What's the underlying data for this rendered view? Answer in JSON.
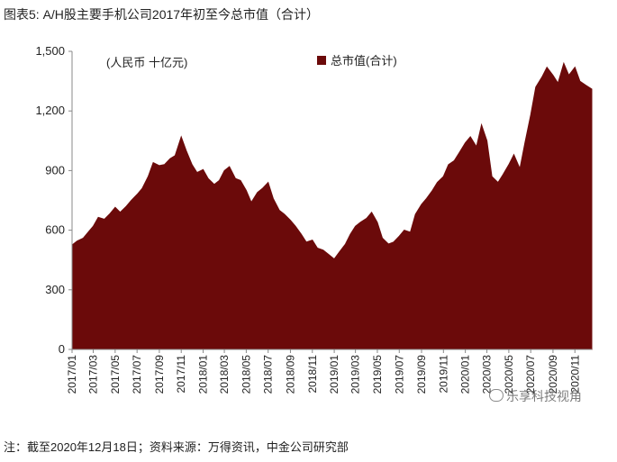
{
  "header": {
    "title": "图表5: A/H股主要手机公司2017年初至今总市值（合计）"
  },
  "footer": {
    "note": "注：截至2020年12月18日；资料来源：万得资讯，中金公司研究部"
  },
  "watermark": {
    "text": "乐享科技视角"
  },
  "chart_data": {
    "type": "area",
    "unit_label": "(人民币 十亿元)",
    "legend": [
      {
        "name": "总市值(合计)",
        "color": "#6b0a0a"
      }
    ],
    "legend_position": "top-right",
    "ylim": [
      0,
      1500
    ],
    "y_ticks": [
      "0",
      "300",
      "600",
      "900",
      "1,200",
      "1,500"
    ],
    "y_tick_values": [
      0,
      300,
      600,
      900,
      1200,
      1500
    ],
    "x_tick_labels": [
      "2017/01",
      "2017/03",
      "2017/05",
      "2017/07",
      "2017/09",
      "2017/11",
      "2018/01",
      "2018/03",
      "2018/05",
      "2018/07",
      "2018/09",
      "2018/11",
      "2019/01",
      "2019/03",
      "2019/05",
      "2019/07",
      "2019/09",
      "2019/11",
      "2020/01",
      "2020/03",
      "2020/05",
      "2020/07",
      "2020/09",
      "2020/11"
    ],
    "grid": false,
    "series": [
      {
        "name": "总市值(合计)",
        "color": "#6b0a0a",
        "points": [
          [
            "2017/01/01",
            525
          ],
          [
            "2017/01/15",
            545
          ],
          [
            "2017/02/01",
            560
          ],
          [
            "2017/02/15",
            590
          ],
          [
            "2017/03/01",
            620
          ],
          [
            "2017/03/15",
            665
          ],
          [
            "2017/04/01",
            655
          ],
          [
            "2017/04/15",
            680
          ],
          [
            "2017/05/01",
            715
          ],
          [
            "2017/05/15",
            690
          ],
          [
            "2017/06/01",
            720
          ],
          [
            "2017/06/15",
            750
          ],
          [
            "2017/07/01",
            780
          ],
          [
            "2017/07/15",
            810
          ],
          [
            "2017/08/01",
            870
          ],
          [
            "2017/08/15",
            940
          ],
          [
            "2017/09/01",
            925
          ],
          [
            "2017/09/15",
            930
          ],
          [
            "2017/10/01",
            960
          ],
          [
            "2017/10/15",
            975
          ],
          [
            "2017/11/01",
            1070
          ],
          [
            "2017/11/15",
            1000
          ],
          [
            "2017/12/01",
            930
          ],
          [
            "2017/12/15",
            890
          ],
          [
            "2018/01/01",
            905
          ],
          [
            "2018/01/15",
            860
          ],
          [
            "2018/02/01",
            830
          ],
          [
            "2018/02/15",
            850
          ],
          [
            "2018/03/01",
            900
          ],
          [
            "2018/03/15",
            920
          ],
          [
            "2018/04/01",
            860
          ],
          [
            "2018/04/15",
            850
          ],
          [
            "2018/05/01",
            800
          ],
          [
            "2018/05/15",
            740
          ],
          [
            "2018/06/01",
            790
          ],
          [
            "2018/06/15",
            810
          ],
          [
            "2018/07/01",
            840
          ],
          [
            "2018/07/15",
            760
          ],
          [
            "2018/08/01",
            700
          ],
          [
            "2018/08/15",
            680
          ],
          [
            "2018/09/01",
            650
          ],
          [
            "2018/09/15",
            620
          ],
          [
            "2018/10/01",
            580
          ],
          [
            "2018/10/15",
            540
          ],
          [
            "2018/11/01",
            550
          ],
          [
            "2018/11/15",
            510
          ],
          [
            "2018/12/01",
            500
          ],
          [
            "2018/12/15",
            480
          ],
          [
            "2019/01/01",
            455
          ],
          [
            "2019/01/15",
            490
          ],
          [
            "2019/02/01",
            530
          ],
          [
            "2019/02/15",
            580
          ],
          [
            "2019/03/01",
            620
          ],
          [
            "2019/03/15",
            640
          ],
          [
            "2019/04/01",
            660
          ],
          [
            "2019/04/15",
            690
          ],
          [
            "2019/05/01",
            640
          ],
          [
            "2019/05/15",
            560
          ],
          [
            "2019/06/01",
            530
          ],
          [
            "2019/06/15",
            540
          ],
          [
            "2019/07/01",
            570
          ],
          [
            "2019/07/15",
            600
          ],
          [
            "2019/08/01",
            590
          ],
          [
            "2019/08/15",
            680
          ],
          [
            "2019/09/01",
            730
          ],
          [
            "2019/09/15",
            760
          ],
          [
            "2019/10/01",
            800
          ],
          [
            "2019/10/15",
            840
          ],
          [
            "2019/11/01",
            870
          ],
          [
            "2019/11/15",
            930
          ],
          [
            "2019/12/01",
            950
          ],
          [
            "2019/12/15",
            990
          ],
          [
            "2020/01/01",
            1040
          ],
          [
            "2020/01/15",
            1070
          ],
          [
            "2020/02/01",
            1020
          ],
          [
            "2020/02/15",
            1130
          ],
          [
            "2020/03/01",
            1050
          ],
          [
            "2020/03/15",
            870
          ],
          [
            "2020/04/01",
            840
          ],
          [
            "2020/04/15",
            880
          ],
          [
            "2020/05/01",
            930
          ],
          [
            "2020/05/15",
            980
          ],
          [
            "2020/06/01",
            910
          ],
          [
            "2020/06/15",
            1040
          ],
          [
            "2020/07/01",
            1180
          ],
          [
            "2020/07/15",
            1320
          ],
          [
            "2020/08/01",
            1370
          ],
          [
            "2020/08/15",
            1420
          ],
          [
            "2020/09/01",
            1380
          ],
          [
            "2020/09/15",
            1340
          ],
          [
            "2020/10/01",
            1440
          ],
          [
            "2020/10/15",
            1380
          ],
          [
            "2020/11/01",
            1420
          ],
          [
            "2020/11/15",
            1350
          ],
          [
            "2020/12/01",
            1330
          ],
          [
            "2020/12/18",
            1310
          ]
        ]
      }
    ]
  }
}
